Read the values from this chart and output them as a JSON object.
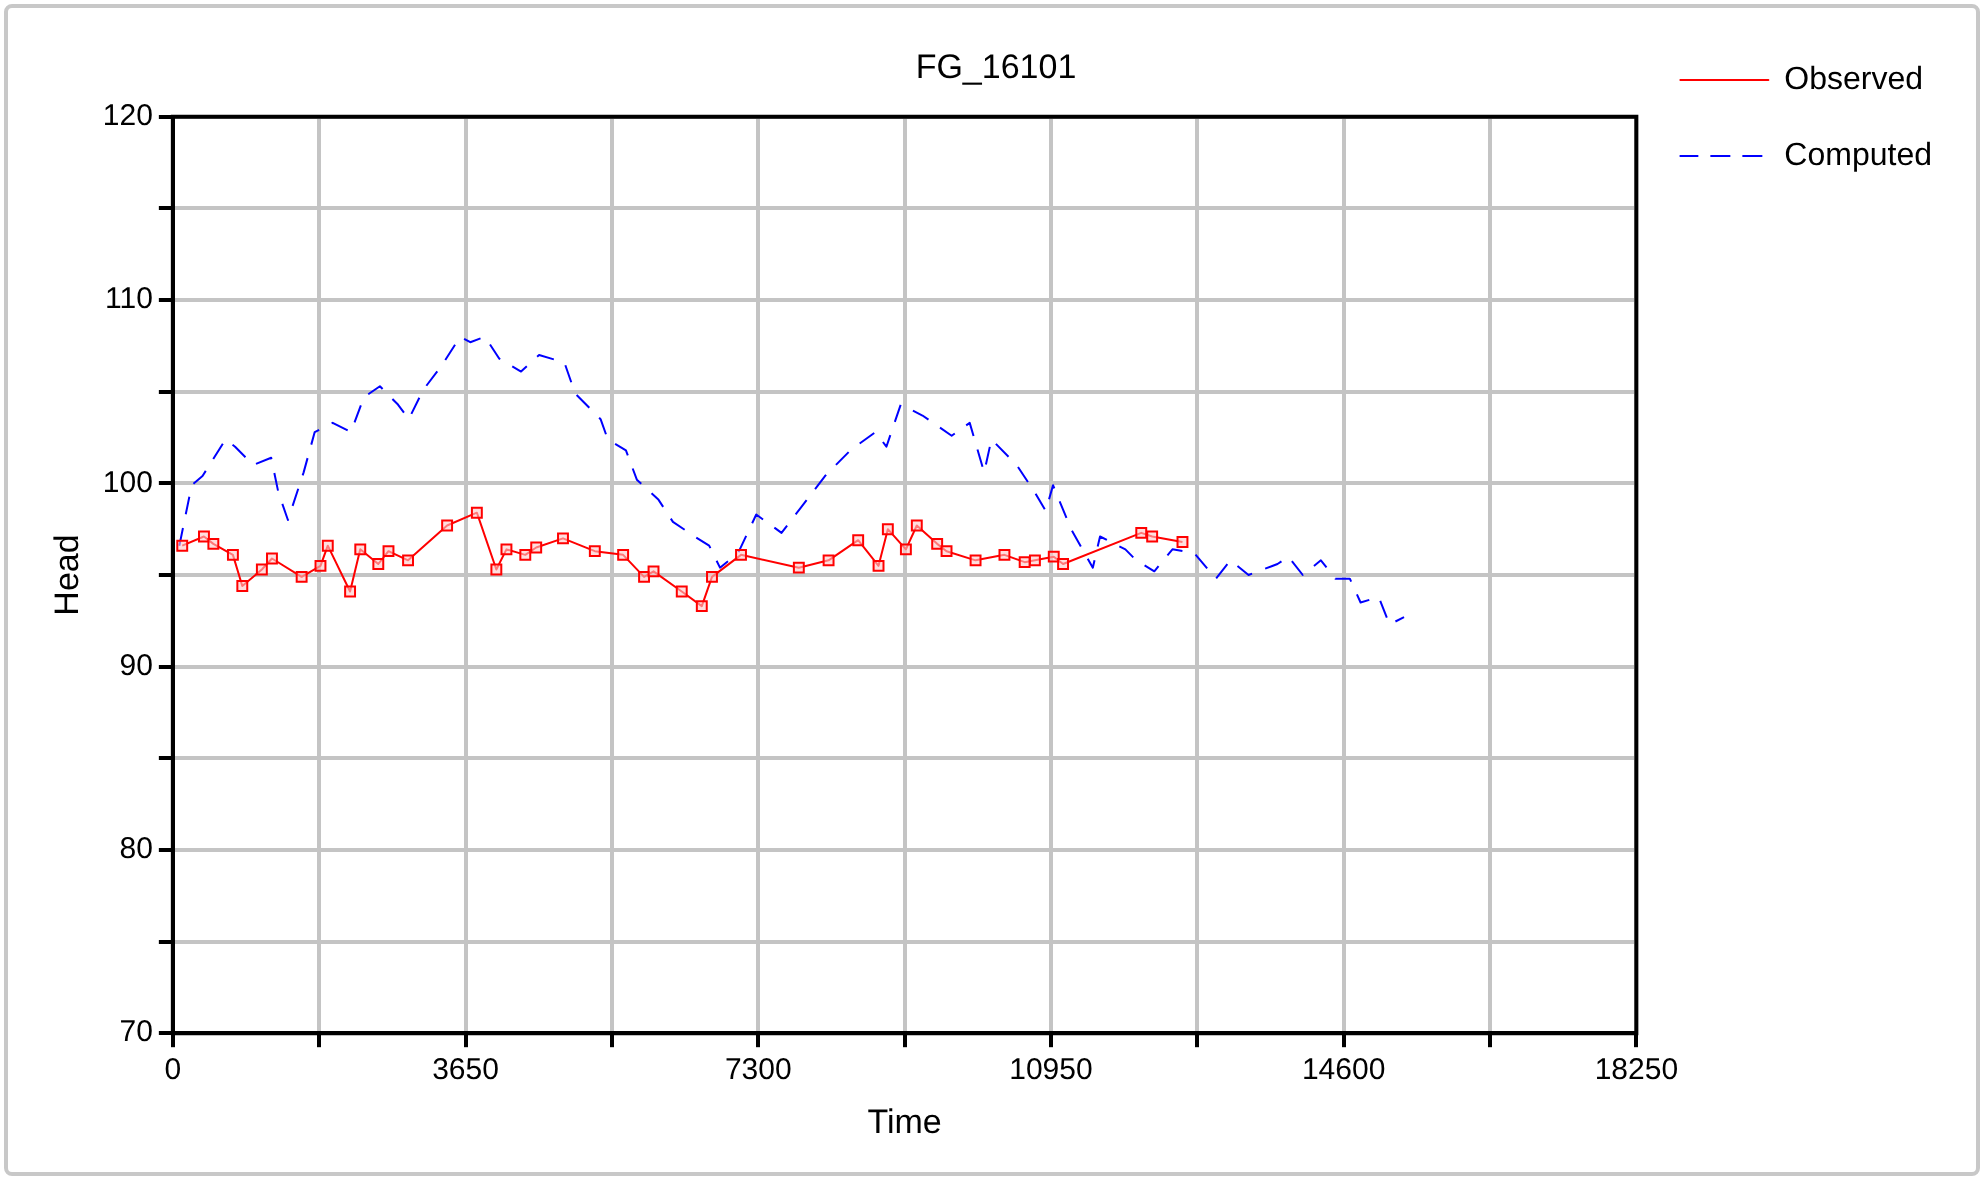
{
  "chart_data": {
    "type": "line",
    "title": "FG_16101",
    "xlabel": "Time",
    "ylabel": "Head",
    "xlim": [
      0,
      18250
    ],
    "xticks": [
      0,
      {
        "value": 1825,
        "label": null
      },
      3650,
      {
        "value": 5475,
        "label": null
      },
      7300,
      {
        "value": 9125,
        "label": null
      },
      10950,
      {
        "value": 12775,
        "label": null
      },
      14600,
      {
        "value": 16425,
        "label": null
      },
      18250
    ],
    "ylim": [
      70,
      120
    ],
    "yticks": [
      70,
      {
        "value": 75,
        "label": null
      },
      80,
      {
        "value": 85,
        "label": null
      },
      90,
      {
        "value": 95,
        "label": null
      },
      100,
      {
        "value": 105,
        "label": null
      },
      110,
      {
        "value": 115,
        "label": null
      },
      120
    ],
    "grid": true,
    "legend": "top right",
    "series": [
      {
        "name": "Observed",
        "color": "#ff0000",
        "marker": "square",
        "line_style": "solid",
        "x": [
          117,
          388,
          505,
          749,
          866,
          1110,
          1236,
          1606,
          1841,
          1932,
          2210,
          2337,
          2562,
          2689,
          2933,
          3420,
          3791,
          4034,
          4160,
          4395,
          4531,
          4865,
          5262,
          5615,
          5876,
          5994,
          6346,
          6596,
          6723,
          7085,
          7806,
          8177,
          8546,
          8800,
          8916,
          9141,
          9277,
          9531,
          9648,
          10010,
          10370,
          10622,
          10750,
          10985,
          11101,
          12076,
          12212,
          12590
        ],
        "values": [
          96.6,
          97.1,
          96.7,
          96.1,
          94.4,
          95.3,
          95.9,
          94.9,
          95.5,
          96.6,
          94.1,
          96.4,
          95.6,
          96.3,
          95.8,
          97.7,
          98.4,
          95.3,
          96.4,
          96.1,
          96.5,
          97.0,
          96.3,
          96.1,
          94.9,
          95.2,
          94.1,
          93.3,
          94.9,
          96.1,
          95.4,
          95.8,
          96.9,
          95.5,
          97.5,
          96.4,
          97.7,
          96.7,
          96.3,
          95.8,
          96.1,
          95.7,
          95.8,
          96.0,
          95.6,
          97.3,
          97.1,
          96.8
        ]
      },
      {
        "name": "Computed",
        "color": "#0000ff",
        "marker": "none",
        "line_style": "dashed",
        "x": [
          81,
          235,
          370,
          658,
          776,
          1002,
          1226,
          1316,
          1435,
          1631,
          1769,
          1993,
          2220,
          2383,
          2582,
          2807,
          2942,
          3122,
          3348,
          3584,
          3709,
          3891,
          4071,
          4342,
          4567,
          4882,
          5017,
          5334,
          5424,
          5650,
          5786,
          6057,
          6236,
          6507,
          6688,
          6823,
          7049,
          7275,
          7590,
          7906,
          8132,
          8448,
          8762,
          8898,
          9077,
          9348,
          9712,
          9937,
          10117,
          10208,
          10523,
          10750,
          10885,
          10976,
          11201,
          11472,
          11562,
          11878,
          12013,
          12239,
          12465,
          12736,
          13007,
          13188,
          13414,
          13775,
          13910,
          14090,
          14316,
          14496,
          14677,
          14811,
          15037,
          15172,
          15353
        ],
        "values": [
          96.6,
          99.9,
          100.4,
          102.4,
          102.0,
          101.0,
          101.4,
          99.5,
          98.0,
          100.6,
          102.8,
          103.3,
          102.8,
          104.7,
          105.3,
          104.3,
          103.5,
          105.1,
          106.4,
          108.0,
          107.7,
          108.0,
          106.8,
          106.1,
          107.0,
          106.6,
          104.9,
          103.5,
          102.4,
          101.8,
          100.2,
          99.1,
          97.9,
          97.1,
          96.6,
          95.4,
          96.2,
          98.3,
          97.3,
          99.1,
          100.4,
          101.8,
          102.8,
          102.0,
          104.3,
          103.7,
          102.6,
          103.3,
          100.6,
          102.4,
          101.0,
          99.5,
          98.5,
          99.9,
          97.5,
          95.4,
          97.1,
          96.4,
          95.8,
          95.2,
          96.4,
          96.2,
          94.8,
          95.8,
          95.0,
          95.6,
          96.0,
          95.0,
          95.8,
          94.8,
          94.8,
          93.5,
          93.8,
          92.3,
          92.7
        ]
      }
    ]
  }
}
